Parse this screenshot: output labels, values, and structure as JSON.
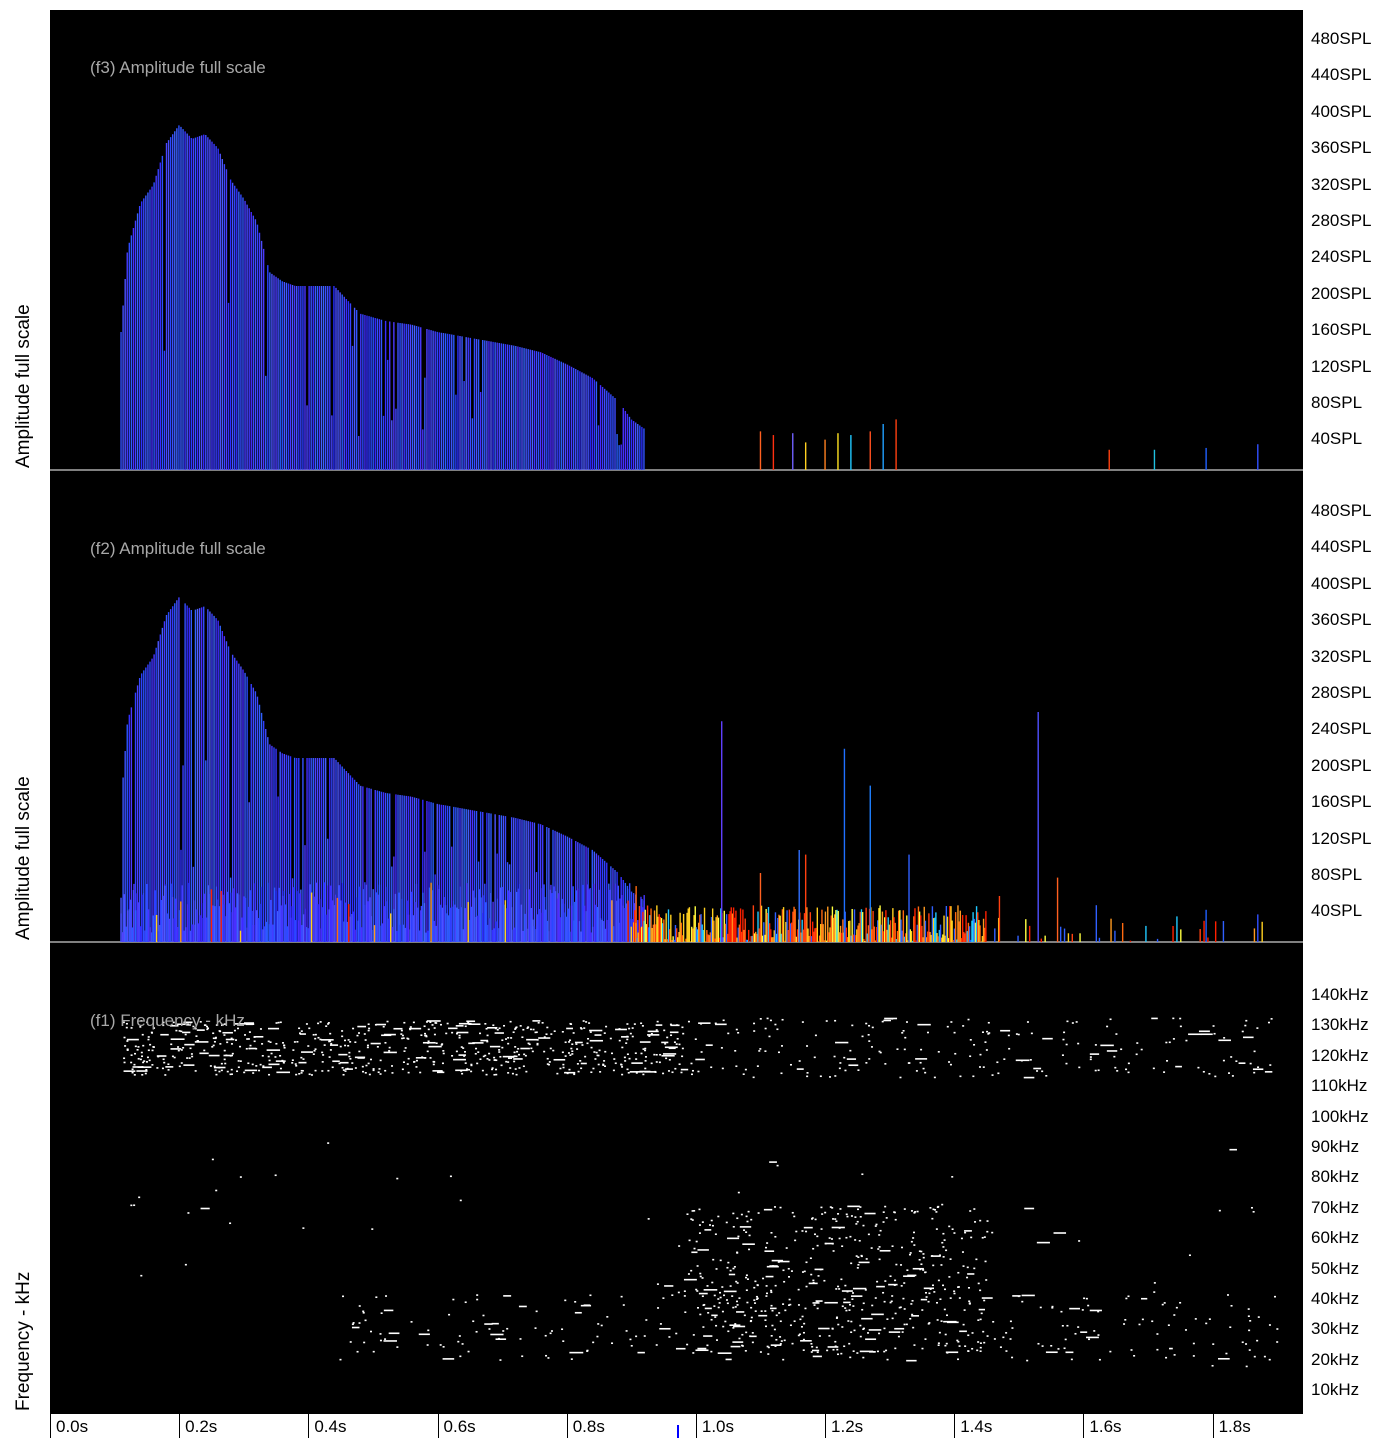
{
  "chart_data": [
    {
      "id": "f3",
      "type": "bar",
      "title": "(f3) Amplitude full scale",
      "ylabel": "Amplitude full scale",
      "y_unit": "SPL",
      "ylim": [
        0,
        500
      ],
      "yticks": [
        "480SPL",
        "440SPL",
        "400SPL",
        "360SPL",
        "320SPL",
        "280SPL",
        "240SPL",
        "200SPL",
        "160SPL",
        "120SPL",
        "80SPL",
        "40SPL"
      ],
      "envelope": [
        [
          0.11,
          150
        ],
        [
          0.12,
          240
        ],
        [
          0.14,
          290
        ],
        [
          0.16,
          310
        ],
        [
          0.18,
          355
        ],
        [
          0.2,
          375
        ],
        [
          0.22,
          360
        ],
        [
          0.24,
          365
        ],
        [
          0.26,
          350
        ],
        [
          0.28,
          315
        ],
        [
          0.3,
          295
        ],
        [
          0.32,
          270
        ],
        [
          0.34,
          215
        ],
        [
          0.36,
          205
        ],
        [
          0.38,
          200
        ],
        [
          0.4,
          200
        ],
        [
          0.44,
          200
        ],
        [
          0.48,
          170
        ],
        [
          0.52,
          162
        ],
        [
          0.56,
          158
        ],
        [
          0.6,
          150
        ],
        [
          0.64,
          145
        ],
        [
          0.68,
          140
        ],
        [
          0.72,
          135
        ],
        [
          0.76,
          128
        ],
        [
          0.8,
          115
        ],
        [
          0.84,
          100
        ],
        [
          0.88,
          75
        ],
        [
          0.9,
          55
        ],
        [
          0.92,
          45
        ]
      ],
      "spikes": [
        {
          "t": 1.1,
          "v": 42,
          "color": "#ff6020"
        },
        {
          "t": 1.12,
          "v": 38,
          "color": "#ff3010"
        },
        {
          "t": 1.15,
          "v": 40,
          "color": "#7060ff"
        },
        {
          "t": 1.17,
          "v": 30,
          "color": "#ffd020"
        },
        {
          "t": 1.2,
          "v": 33,
          "color": "#ff8020"
        },
        {
          "t": 1.22,
          "v": 40,
          "color": "#ffe020"
        },
        {
          "t": 1.24,
          "v": 38,
          "color": "#20c8ff"
        },
        {
          "t": 1.27,
          "v": 42,
          "color": "#ff5020"
        },
        {
          "t": 1.29,
          "v": 50,
          "color": "#20a0ff"
        },
        {
          "t": 1.31,
          "v": 55,
          "color": "#ff4010"
        },
        {
          "t": 1.64,
          "v": 22,
          "color": "#ff4010"
        },
        {
          "t": 1.71,
          "v": 22,
          "color": "#20c0e0"
        },
        {
          "t": 1.79,
          "v": 24,
          "color": "#2060ff"
        },
        {
          "t": 1.87,
          "v": 28,
          "color": "#3050ff"
        }
      ]
    },
    {
      "id": "f2",
      "type": "bar",
      "title": "(f2) Amplitude full scale",
      "ylabel": "Amplitude full scale",
      "y_unit": "SPL",
      "ylim": [
        0,
        500
      ],
      "yticks": [
        "480SPL",
        "440SPL",
        "400SPL",
        "360SPL",
        "320SPL",
        "280SPL",
        "240SPL",
        "200SPL",
        "160SPL",
        "120SPL",
        "80SPL",
        "40SPL"
      ],
      "envelope": [
        [
          0.11,
          150
        ],
        [
          0.12,
          240
        ],
        [
          0.14,
          290
        ],
        [
          0.16,
          310
        ],
        [
          0.18,
          355
        ],
        [
          0.2,
          375
        ],
        [
          0.22,
          360
        ],
        [
          0.24,
          365
        ],
        [
          0.26,
          350
        ],
        [
          0.28,
          315
        ],
        [
          0.3,
          295
        ],
        [
          0.32,
          270
        ],
        [
          0.34,
          215
        ],
        [
          0.36,
          205
        ],
        [
          0.38,
          200
        ],
        [
          0.4,
          200
        ],
        [
          0.44,
          200
        ],
        [
          0.48,
          170
        ],
        [
          0.52,
          162
        ],
        [
          0.56,
          158
        ],
        [
          0.6,
          150
        ],
        [
          0.64,
          145
        ],
        [
          0.68,
          140
        ],
        [
          0.72,
          135
        ],
        [
          0.76,
          128
        ],
        [
          0.8,
          115
        ],
        [
          0.84,
          100
        ],
        [
          0.88,
          75
        ],
        [
          0.9,
          55
        ],
        [
          0.92,
          45
        ]
      ],
      "spikes": [
        {
          "t": 1.04,
          "v": 240,
          "color": "#6040ff"
        },
        {
          "t": 1.1,
          "v": 75,
          "color": "#ff6020"
        },
        {
          "t": 1.16,
          "v": 100,
          "color": "#3070ff"
        },
        {
          "t": 1.17,
          "v": 95,
          "color": "#ff4010"
        },
        {
          "t": 1.23,
          "v": 210,
          "color": "#2070ff"
        },
        {
          "t": 1.27,
          "v": 170,
          "color": "#2080ff"
        },
        {
          "t": 1.33,
          "v": 95,
          "color": "#3060ff"
        },
        {
          "t": 1.53,
          "v": 250,
          "color": "#5050ff"
        },
        {
          "t": 1.47,
          "v": 50,
          "color": "#ff4010"
        },
        {
          "t": 1.56,
          "v": 70,
          "color": "#ff6020"
        },
        {
          "t": 1.62,
          "v": 40,
          "color": "#3060ff"
        },
        {
          "t": 1.79,
          "v": 35,
          "color": "#2060ff"
        },
        {
          "t": 1.87,
          "v": 30,
          "color": "#3050ff"
        }
      ],
      "noise_range": [
        0.9,
        1.88
      ],
      "noise_max": 40
    },
    {
      "id": "f1",
      "type": "scatter",
      "title": "(f1) Frequency - kHz",
      "ylabel": "Frequency - kHz",
      "y_unit": "kHz",
      "ylim": [
        0,
        150
      ],
      "yticks": [
        "140kHz",
        "130kHz",
        "120kHz",
        "110kHz",
        "100kHz",
        "90kHz",
        "80kHz",
        "70kHz",
        "60kHz",
        "50kHz",
        "40kHz",
        "30kHz",
        "20kHz",
        "10kHz"
      ],
      "clusters": [
        {
          "t": [
            0.11,
            0.98
          ],
          "f": [
            113,
            131
          ],
          "n": 700
        },
        {
          "t": [
            0.98,
            1.9
          ],
          "f": [
            112,
            132
          ],
          "n": 220
        },
        {
          "t": [
            0.98,
            1.45
          ],
          "f": [
            20,
            70
          ],
          "n": 500
        },
        {
          "t": [
            0.45,
            1.9
          ],
          "f": [
            18,
            40
          ],
          "n": 260
        },
        {
          "t": [
            0.1,
            1.9
          ],
          "f": [
            15,
            95
          ],
          "n": 60
        }
      ]
    }
  ],
  "x_axis": {
    "range": [
      0.0,
      1.94
    ],
    "ticks": [
      "0.0s",
      "0.2s",
      "0.4s",
      "0.6s",
      "0.8s",
      "1.0s",
      "1.2s",
      "1.4s",
      "1.6s",
      "1.8s"
    ],
    "tick_values": [
      0.0,
      0.2,
      0.4,
      0.6,
      0.8,
      1.0,
      1.2,
      1.4,
      1.6,
      1.8
    ],
    "cursor_time": 0.97
  }
}
